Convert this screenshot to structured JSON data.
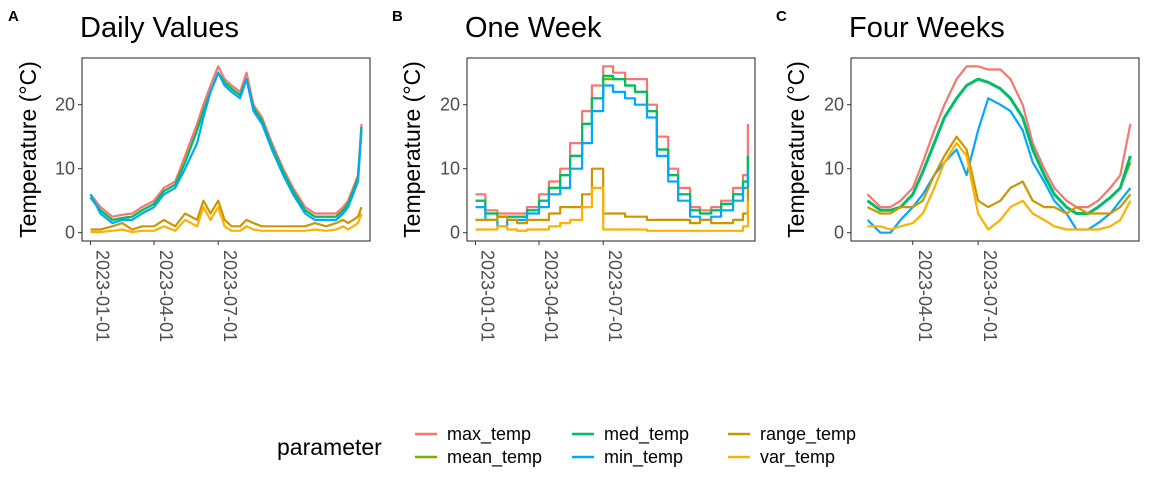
{
  "chart_data": [
    {
      "type": "line",
      "panel_tag": "A",
      "title": "Daily Values",
      "xlabel": "",
      "ylabel": "Temperature (°C)",
      "x_ticks": [
        "2023-01-01",
        "2023-04-01",
        "2023-07-01"
      ],
      "y_ticks": [
        0,
        10,
        20
      ],
      "xlim": [
        "2022-12-20",
        "2024-02-01"
      ],
      "ylim": [
        -1.3,
        27.3
      ],
      "grid": false,
      "step": false,
      "x": [
        "2023-01-01",
        "2023-01-15",
        "2023-02-01",
        "2023-02-15",
        "2023-03-01",
        "2023-03-15",
        "2023-04-01",
        "2023-04-15",
        "2023-05-01",
        "2023-05-15",
        "2023-06-01",
        "2023-06-10",
        "2023-06-20",
        "2023-07-01",
        "2023-07-10",
        "2023-07-20",
        "2023-08-01",
        "2023-08-10",
        "2023-08-20",
        "2023-09-01",
        "2023-09-15",
        "2023-10-01",
        "2023-10-15",
        "2023-11-01",
        "2023-11-15",
        "2023-12-01",
        "2023-12-15",
        "2023-12-25",
        "2024-01-01",
        "2024-01-08",
        "2024-01-15",
        "2024-01-20"
      ],
      "series": [
        {
          "name": "max_temp",
          "color": "#F8766D",
          "values": [
            6,
            4,
            2.5,
            2.8,
            3,
            4,
            5,
            7,
            8,
            12,
            17,
            20,
            23,
            26,
            24,
            23,
            22,
            25,
            20,
            18,
            14,
            10,
            7,
            4,
            3,
            3,
            3,
            4,
            5,
            7,
            9,
            17
          ]
        },
        {
          "name": "mean_temp",
          "color": "#7CAE00",
          "values": [
            5.5,
            3.5,
            2,
            2.3,
            2.5,
            3.5,
            4.5,
            6.5,
            7.5,
            11,
            16,
            19,
            22,
            25,
            23.5,
            22.5,
            21.5,
            24,
            19.5,
            17.5,
            13.5,
            9.5,
            6.5,
            3.5,
            2.5,
            2.5,
            2.5,
            3.5,
            4.5,
            6.5,
            8.5,
            16.5
          ]
        },
        {
          "name": "med_temp",
          "color": "#00BE67",
          "values": [
            5.5,
            3.5,
            2,
            2.3,
            2.5,
            3.5,
            4.5,
            6.5,
            7.5,
            11,
            16,
            19,
            22,
            25,
            23.5,
            22.5,
            21.5,
            24,
            19.5,
            17.5,
            13.5,
            9.5,
            6.5,
            3.5,
            2.5,
            2.5,
            2.5,
            3.5,
            4.5,
            6.5,
            8.5,
            16.5
          ]
        },
        {
          "name": "min_temp",
          "color": "#00A9FF",
          "values": [
            6,
            3,
            1.5,
            2,
            2,
            3,
            4,
            6,
            7,
            10,
            14,
            18,
            22,
            25,
            23,
            22,
            21,
            24,
            19,
            17,
            13,
            9,
            6,
            3,
            2,
            2,
            2,
            3,
            4,
            6,
            8,
            16
          ]
        },
        {
          "name": "range_temp",
          "color": "#CD9600",
          "values": [
            0.5,
            0.5,
            1,
            1.5,
            0.5,
            1,
            1,
            2,
            1,
            3,
            2,
            5,
            3,
            5,
            2,
            1,
            1,
            2,
            1.5,
            1,
            1,
            1,
            1,
            1,
            1.5,
            1,
            1.5,
            2,
            1.5,
            2,
            2.5,
            4
          ]
        },
        {
          "name": "var_temp",
          "color": "#FFB000",
          "values": [
            0.1,
            0.1,
            0.3,
            0.5,
            0.1,
            0.3,
            0.3,
            1,
            0.3,
            2,
            1,
            4,
            2,
            4,
            1,
            0.3,
            0.3,
            1,
            0.5,
            0.3,
            0.3,
            0.3,
            0.3,
            0.3,
            0.5,
            0.3,
            0.5,
            1,
            0.5,
            1,
            1.5,
            3
          ]
        }
      ]
    },
    {
      "type": "line",
      "panel_tag": "B",
      "title": "One Week",
      "xlabel": "",
      "ylabel": "Temperature (°C)",
      "x_ticks": [
        "2023-01-01",
        "2023-04-01",
        "2023-07-01"
      ],
      "y_ticks": [
        0,
        10,
        20
      ],
      "xlim": [
        "2022-12-20",
        "2024-02-01"
      ],
      "ylim": [
        -1.3,
        27.3
      ],
      "grid": false,
      "step": true,
      "x": [
        "2023-01-01",
        "2023-01-15",
        "2023-02-01",
        "2023-02-15",
        "2023-03-01",
        "2023-03-15",
        "2023-04-01",
        "2023-04-15",
        "2023-05-01",
        "2023-05-15",
        "2023-06-01",
        "2023-06-15",
        "2023-07-01",
        "2023-07-15",
        "2023-08-01",
        "2023-08-15",
        "2023-09-01",
        "2023-09-15",
        "2023-10-01",
        "2023-10-15",
        "2023-11-01",
        "2023-11-15",
        "2023-12-01",
        "2023-12-15",
        "2024-01-01",
        "2024-01-15",
        "2024-01-22"
      ],
      "series": [
        {
          "name": "max_temp",
          "color": "#F8766D",
          "values": [
            6,
            3.5,
            3,
            3,
            3,
            4,
            6,
            8,
            10,
            14,
            19,
            23,
            26,
            25,
            24,
            24,
            20,
            15,
            10,
            7,
            4,
            3.5,
            4,
            5,
            7,
            9,
            17
          ]
        },
        {
          "name": "mean_temp",
          "color": "#7CAE00",
          "values": [
            5,
            3,
            2.5,
            2.5,
            2.5,
            3.5,
            5,
            7,
            9,
            12,
            17,
            21,
            24,
            24,
            23,
            22,
            19,
            13,
            9,
            6,
            3.5,
            3,
            3.5,
            4.5,
            6,
            8,
            12
          ]
        },
        {
          "name": "med_temp",
          "color": "#00BE67",
          "values": [
            5,
            3,
            2.5,
            2.5,
            2.5,
            3.5,
            5,
            7,
            9,
            12,
            17,
            21,
            24.5,
            24,
            23,
            22,
            19,
            13,
            9,
            6,
            3.5,
            3,
            3.5,
            4.5,
            6,
            8,
            12
          ]
        },
        {
          "name": "min_temp",
          "color": "#00A9FF",
          "values": [
            4,
            2,
            1,
            2,
            2,
            3,
            4,
            6,
            7,
            10,
            14,
            19,
            23,
            22,
            21,
            20,
            18,
            12,
            8,
            5,
            2.5,
            2,
            2.5,
            3.5,
            5,
            7,
            10
          ]
        },
        {
          "name": "range_temp",
          "color": "#CD9600",
          "values": [
            2,
            2,
            2.5,
            2,
            1.5,
            2,
            2,
            3,
            4,
            4,
            6,
            10,
            3,
            3,
            2.5,
            2.5,
            2,
            2,
            2,
            2,
            1.5,
            2,
            1.5,
            1.5,
            2,
            3,
            7
          ]
        },
        {
          "name": "var_temp",
          "color": "#FFB000",
          "values": [
            0.5,
            0.5,
            1,
            0.5,
            0.3,
            0.5,
            0.5,
            1,
            1.5,
            2,
            4,
            7,
            0.5,
            0.5,
            0.5,
            0.5,
            0.3,
            0.3,
            0.3,
            0.3,
            0.3,
            0.3,
            0.3,
            0.3,
            0.3,
            1,
            5
          ]
        }
      ]
    },
    {
      "type": "line",
      "panel_tag": "C",
      "title": "Four Weeks",
      "xlabel": "",
      "ylabel": "Temperature (°C)",
      "x_ticks": [
        "2023-04-01",
        "2023-07-01"
      ],
      "y_ticks": [
        0,
        10,
        20
      ],
      "xlim": [
        "2023-01-05",
        "2024-02-10"
      ],
      "ylim": [
        -1.3,
        27.3
      ],
      "grid": false,
      "step": false,
      "x": [
        "2023-01-28",
        "2023-02-15",
        "2023-03-01",
        "2023-03-15",
        "2023-04-01",
        "2023-04-15",
        "2023-05-01",
        "2023-05-15",
        "2023-06-01",
        "2023-06-15",
        "2023-07-01",
        "2023-07-15",
        "2023-08-01",
        "2023-08-15",
        "2023-09-01",
        "2023-09-15",
        "2023-10-01",
        "2023-10-15",
        "2023-11-01",
        "2023-11-15",
        "2023-12-01",
        "2023-12-15",
        "2024-01-01",
        "2024-01-15",
        "2024-01-29"
      ],
      "series": [
        {
          "name": "max_temp",
          "color": "#F8766D",
          "values": [
            6,
            4,
            4,
            5,
            7,
            11,
            16,
            20,
            24,
            26,
            26,
            25.5,
            25.5,
            24,
            20,
            14,
            10,
            7,
            5,
            4,
            4,
            5,
            7,
            9,
            17
          ]
        },
        {
          "name": "mean_temp",
          "color": "#7CAE00",
          "values": [
            5,
            3.5,
            3.5,
            4,
            6,
            9.5,
            14,
            18,
            21,
            23,
            24,
            23.5,
            22.5,
            21,
            18,
            13,
            9,
            6,
            4,
            3,
            3,
            4,
            5.5,
            7,
            11
          ]
        },
        {
          "name": "med_temp",
          "color": "#00BE67",
          "values": [
            5,
            3.5,
            3.5,
            4,
            6,
            9.5,
            14,
            18,
            21,
            23,
            24,
            23.5,
            22.5,
            21,
            18,
            13,
            9,
            6,
            4,
            3,
            3,
            4,
            5.5,
            7,
            12
          ]
        },
        {
          "name": "min_temp",
          "color": "#00A9FF",
          "values": [
            2,
            0,
            0,
            2,
            4,
            6,
            9,
            11,
            13,
            9,
            16,
            21,
            20,
            19,
            16,
            11,
            8,
            5,
            3,
            0.5,
            0.5,
            1.5,
            3,
            5,
            7
          ]
        },
        {
          "name": "range_temp",
          "color": "#CD9600",
          "values": [
            4,
            3,
            3,
            4,
            4,
            5,
            9,
            12,
            15,
            13,
            5,
            4,
            5,
            7,
            8,
            5,
            4,
            4,
            3,
            4,
            3,
            3,
            3,
            4,
            6
          ]
        },
        {
          "name": "var_temp",
          "color": "#FFB000",
          "values": [
            1,
            1,
            0.5,
            1,
            1.5,
            3,
            7,
            11,
            14,
            12,
            3,
            0.5,
            2,
            4,
            5,
            3,
            2,
            1,
            0.5,
            0.5,
            0.5,
            0.5,
            1,
            2,
            5
          ]
        }
      ]
    }
  ],
  "legend": {
    "title": "parameter",
    "items": [
      {
        "name": "max_temp",
        "color": "#F8766D"
      },
      {
        "name": "mean_temp",
        "color": "#7CAE00"
      },
      {
        "name": "med_temp",
        "color": "#00BE67"
      },
      {
        "name": "min_temp",
        "color": "#00A9FF"
      },
      {
        "name": "range_temp",
        "color": "#CD9600"
      },
      {
        "name": "var_temp",
        "color": "#FFB000"
      }
    ]
  }
}
